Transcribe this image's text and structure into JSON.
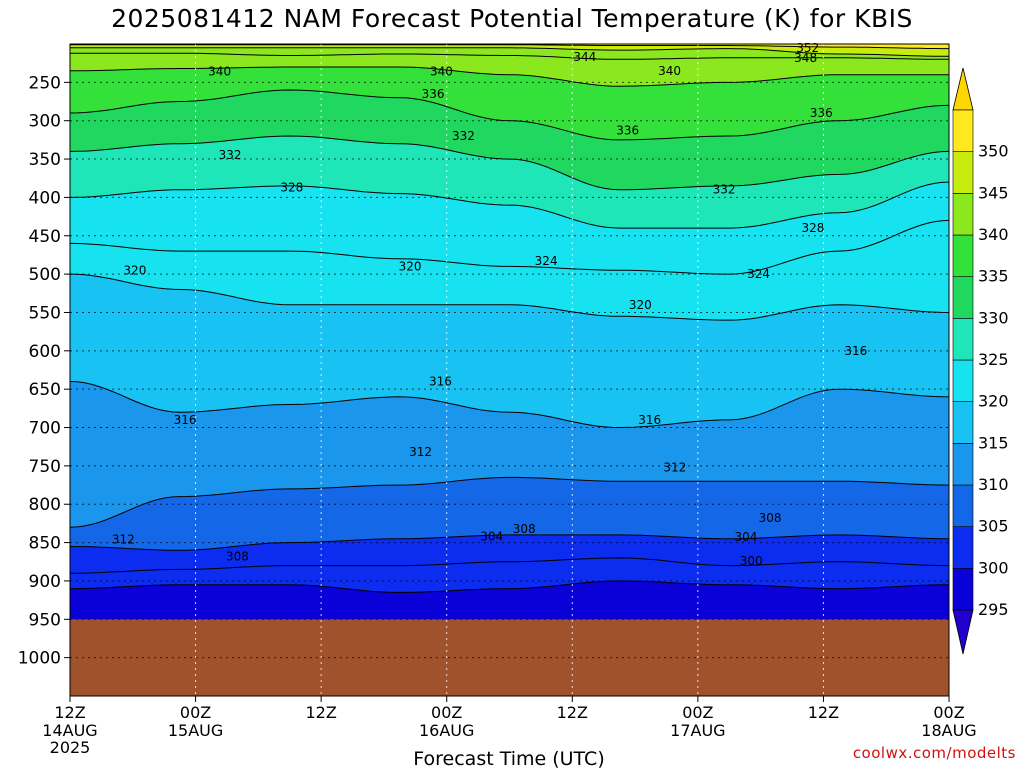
{
  "chart_data": {
    "type": "contour",
    "title": "2025081412 NAM Forecast Potential Temperature (K) for KBIS",
    "xlabel": "Forecast Time (UTC)",
    "x_ticks": [
      {
        "label": "12Z",
        "label2": "14AUG",
        "label3": "2025",
        "hours": 0
      },
      {
        "label": "00Z",
        "label2": "15AUG",
        "label3": "",
        "hours": 12
      },
      {
        "label": "12Z",
        "label2": "",
        "label3": "",
        "hours": 24
      },
      {
        "label": "00Z",
        "label2": "16AUG",
        "label3": "",
        "hours": 36
      },
      {
        "label": "12Z",
        "label2": "",
        "label3": "",
        "hours": 48
      },
      {
        "label": "00Z",
        "label2": "17AUG",
        "label3": "",
        "hours": 60
      },
      {
        "label": "12Z",
        "label2": "",
        "label3": "",
        "hours": 72
      },
      {
        "label": "00Z",
        "label2": "18AUG",
        "label3": "",
        "hours": 84
      }
    ],
    "y_ticks": [
      250,
      300,
      350,
      400,
      450,
      500,
      550,
      600,
      650,
      700,
      750,
      800,
      850,
      900,
      950,
      1000
    ],
    "ylim": [
      200,
      1050
    ],
    "xlim": [
      0,
      84
    ],
    "surface_pressure": 950,
    "colorbar": {
      "levels": [
        295,
        300,
        305,
        310,
        315,
        320,
        325,
        330,
        335,
        340,
        345,
        350
      ],
      "colors": [
        "#0a00d8",
        "#0c2cf0",
        "#1468e8",
        "#1a96ec",
        "#18c2f2",
        "#16e2f0",
        "#1ee6b8",
        "#20d860",
        "#34e03a",
        "#8ce81e",
        "#c8ec10",
        "#ffe81e"
      ],
      "under_color": "#2000cc",
      "over_color": "#ffd700"
    },
    "isentropes": [
      {
        "theta": 300,
        "p": [
          910,
          905,
          905,
          915,
          910,
          900,
          905,
          910,
          905
        ]
      },
      {
        "theta": 304,
        "p": [
          890,
          885,
          880,
          880,
          875,
          870,
          880,
          875,
          880
        ]
      },
      {
        "theta": 308,
        "p": [
          855,
          860,
          850,
          845,
          840,
          840,
          845,
          840,
          845
        ]
      },
      {
        "theta": 312,
        "p": [
          830,
          790,
          780,
          775,
          765,
          770,
          770,
          770,
          775
        ]
      },
      {
        "theta": 316,
        "p": [
          640,
          680,
          670,
          660,
          680,
          700,
          690,
          650,
          660
        ]
      },
      {
        "theta": 320,
        "p": [
          500,
          520,
          540,
          540,
          540,
          555,
          560,
          540,
          550
        ]
      },
      {
        "theta": 324,
        "p": [
          460,
          470,
          470,
          480,
          490,
          495,
          500,
          470,
          430
        ]
      },
      {
        "theta": 328,
        "p": [
          400,
          390,
          385,
          395,
          410,
          440,
          440,
          420,
          380
        ]
      },
      {
        "theta": 332,
        "p": [
          340,
          330,
          320,
          330,
          350,
          390,
          385,
          370,
          340
        ]
      },
      {
        "theta": 336,
        "p": [
          290,
          275,
          260,
          270,
          300,
          325,
          320,
          300,
          280
        ]
      },
      {
        "theta": 340,
        "p": [
          235,
          232,
          230,
          230,
          240,
          255,
          250,
          240,
          240
        ]
      },
      {
        "theta": 344,
        "p": [
          212,
          212,
          215,
          213,
          215,
          220,
          218,
          218,
          220
        ]
      },
      {
        "theta": 348,
        "p": [
          205,
          205,
          205,
          205,
          205,
          208,
          206,
          213,
          216
        ]
      },
      {
        "theta": 352,
        "p": [
          201,
          201,
          201,
          201,
          201,
          202,
          202,
          204,
          206
        ]
      }
    ],
    "contour_labels": [
      {
        "text": "352",
        "hours": 70.5,
        "p": 205
      },
      {
        "text": "348",
        "hours": 70.3,
        "p": 218
      },
      {
        "text": "344",
        "hours": 49.2,
        "p": 217
      },
      {
        "text": "340",
        "hours": 14.3,
        "p": 236
      },
      {
        "text": "340",
        "hours": 35.5,
        "p": 236
      },
      {
        "text": "340",
        "hours": 57.3,
        "p": 235
      },
      {
        "text": "336",
        "hours": 34.7,
        "p": 265
      },
      {
        "text": "336",
        "hours": 71.8,
        "p": 290
      },
      {
        "text": "336",
        "hours": 53.3,
        "p": 313
      },
      {
        "text": "332",
        "hours": 37.6,
        "p": 320
      },
      {
        "text": "332",
        "hours": 15.3,
        "p": 345
      },
      {
        "text": "332",
        "hours": 62.5,
        "p": 390
      },
      {
        "text": "328",
        "hours": 21.2,
        "p": 387
      },
      {
        "text": "328",
        "hours": 71.0,
        "p": 440
      },
      {
        "text": "324",
        "hours": 45.5,
        "p": 483
      },
      {
        "text": "324",
        "hours": 65.8,
        "p": 500
      },
      {
        "text": "320",
        "hours": 6.2,
        "p": 495
      },
      {
        "text": "320",
        "hours": 32.5,
        "p": 490
      },
      {
        "text": "320",
        "hours": 54.5,
        "p": 540
      },
      {
        "text": "316",
        "hours": 75.1,
        "p": 600
      },
      {
        "text": "316",
        "hours": 35.4,
        "p": 640
      },
      {
        "text": "316",
        "hours": 11.0,
        "p": 690
      },
      {
        "text": "316",
        "hours": 55.4,
        "p": 690
      },
      {
        "text": "312",
        "hours": 33.5,
        "p": 732
      },
      {
        "text": "312",
        "hours": 57.8,
        "p": 752
      },
      {
        "text": "308",
        "hours": 66.9,
        "p": 818
      },
      {
        "text": "308",
        "hours": 43.4,
        "p": 832
      },
      {
        "text": "304",
        "hours": 40.3,
        "p": 842
      },
      {
        "text": "304",
        "hours": 64.6,
        "p": 843
      },
      {
        "text": "312",
        "hours": 5.1,
        "p": 846
      },
      {
        "text": "308",
        "hours": 16.0,
        "p": 868
      },
      {
        "text": "300",
        "hours": 65.1,
        "p": 874
      }
    ]
  },
  "credit": "coolwx.com/modelts"
}
